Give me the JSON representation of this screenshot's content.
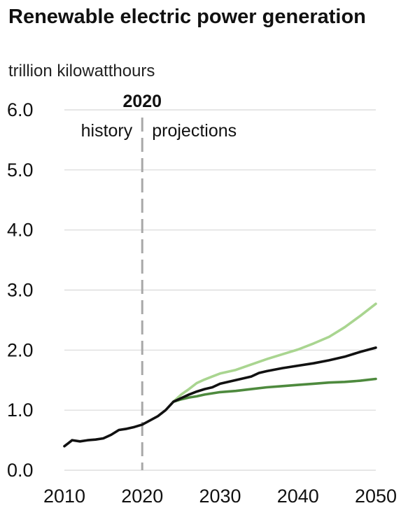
{
  "chart_data": {
    "type": "line",
    "title": "Renewable electric power generation",
    "subtitle": "trillion kilowatthours",
    "xlabel": "",
    "ylabel": "",
    "xlim": [
      2010,
      2050
    ],
    "ylim": [
      0,
      6
    ],
    "x_ticks": [
      "2010",
      "2020",
      "2030",
      "2040",
      "2050"
    ],
    "y_ticks": [
      "0.0",
      "1.0",
      "2.0",
      "3.0",
      "4.0",
      "5.0",
      "6.0"
    ],
    "grid": "horizontal",
    "annotations": {
      "divider_year": 2020,
      "divider_label": "2020",
      "left_label": "history",
      "right_label": "projections"
    },
    "colors": {
      "high": "#a9d590",
      "reference": "#111111",
      "low": "#4e8a3e",
      "grid": "#d8d8d8",
      "divider": "#a8a8a8"
    },
    "series": [
      {
        "key": "history",
        "color": "#111111",
        "points": [
          [
            2010,
            0.4
          ],
          [
            2010.5,
            0.45
          ],
          [
            2011,
            0.5
          ],
          [
            2012,
            0.48
          ],
          [
            2013,
            0.5
          ],
          [
            2014,
            0.51
          ],
          [
            2015,
            0.53
          ],
          [
            2016,
            0.59
          ],
          [
            2017,
            0.67
          ],
          [
            2018,
            0.69
          ],
          [
            2019,
            0.72
          ],
          [
            2020,
            0.76
          ],
          [
            2021,
            0.83
          ],
          [
            2022,
            0.9
          ],
          [
            2023,
            1.0
          ],
          [
            2024,
            1.14
          ]
        ]
      },
      {
        "key": "high",
        "color": "#a9d590",
        "points": [
          [
            2024,
            1.14
          ],
          [
            2025,
            1.26
          ],
          [
            2026,
            1.35
          ],
          [
            2027,
            1.45
          ],
          [
            2028,
            1.51
          ],
          [
            2029,
            1.56
          ],
          [
            2030,
            1.61
          ],
          [
            2032,
            1.67
          ],
          [
            2034,
            1.76
          ],
          [
            2036,
            1.85
          ],
          [
            2038,
            1.93
          ],
          [
            2040,
            2.01
          ],
          [
            2042,
            2.11
          ],
          [
            2044,
            2.22
          ],
          [
            2046,
            2.38
          ],
          [
            2048,
            2.57
          ],
          [
            2050,
            2.77
          ]
        ]
      },
      {
        "key": "low",
        "color": "#4e8a3e",
        "points": [
          [
            2024,
            1.14
          ],
          [
            2025,
            1.18
          ],
          [
            2026,
            1.21
          ],
          [
            2027,
            1.23
          ],
          [
            2028,
            1.26
          ],
          [
            2029,
            1.28
          ],
          [
            2030,
            1.3
          ],
          [
            2032,
            1.32
          ],
          [
            2034,
            1.35
          ],
          [
            2036,
            1.38
          ],
          [
            2038,
            1.4
          ],
          [
            2040,
            1.42
          ],
          [
            2042,
            1.44
          ],
          [
            2044,
            1.46
          ],
          [
            2046,
            1.47
          ],
          [
            2048,
            1.49
          ],
          [
            2050,
            1.52
          ]
        ]
      },
      {
        "key": "reference",
        "color": "#111111",
        "points": [
          [
            2024,
            1.14
          ],
          [
            2025,
            1.2
          ],
          [
            2026,
            1.26
          ],
          [
            2027,
            1.31
          ],
          [
            2028,
            1.35
          ],
          [
            2029,
            1.38
          ],
          [
            2030,
            1.44
          ],
          [
            2032,
            1.5
          ],
          [
            2034,
            1.56
          ],
          [
            2035,
            1.62
          ],
          [
            2036,
            1.65
          ],
          [
            2038,
            1.7
          ],
          [
            2040,
            1.74
          ],
          [
            2042,
            1.78
          ],
          [
            2044,
            1.83
          ],
          [
            2046,
            1.89
          ],
          [
            2048,
            1.97
          ],
          [
            2050,
            2.04
          ]
        ]
      }
    ]
  }
}
